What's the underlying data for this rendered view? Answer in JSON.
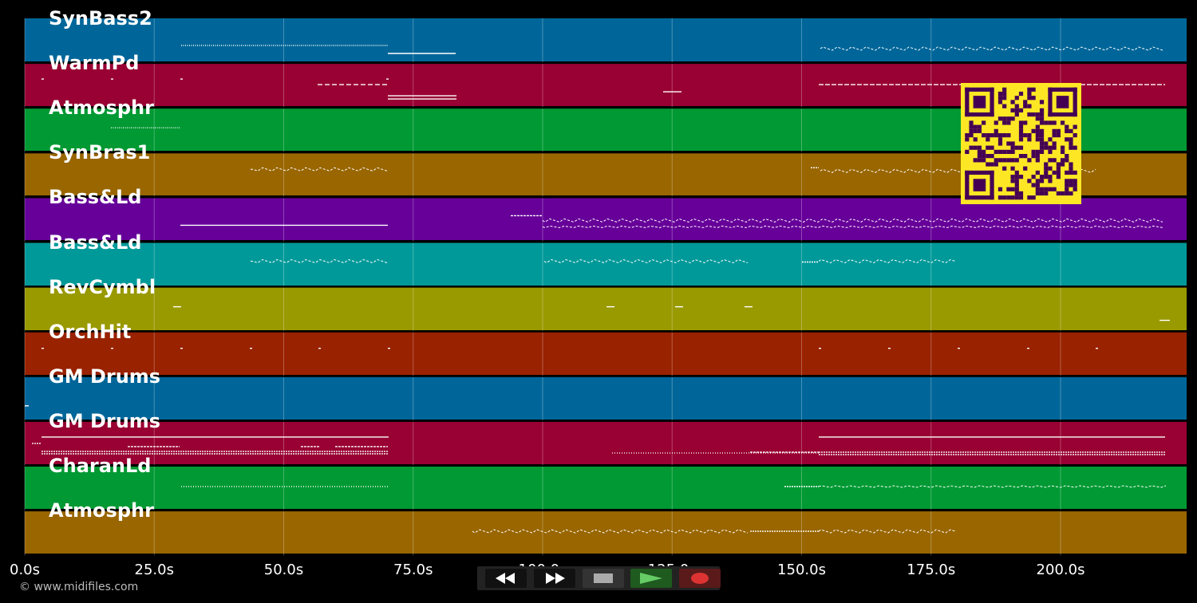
{
  "tracks": [
    {
      "name": "SynBass2",
      "color": "#006699"
    },
    {
      "name": "WarmPd",
      "color": "#990033"
    },
    {
      "name": "Atmosphr",
      "color": "#009933"
    },
    {
      "name": "SynBras1",
      "color": "#996600"
    },
    {
      "name": "Bass&Ld",
      "color": "#660099"
    },
    {
      "name": "Bass&Ld",
      "color": "#009999"
    },
    {
      "name": "RevCymbl",
      "color": "#999900"
    },
    {
      "name": "OrchHit",
      "color": "#992200"
    },
    {
      "name": "GM Drums",
      "color": "#006699"
    },
    {
      "name": "GM Drums",
      "color": "#990033"
    },
    {
      "name": "CharanLd",
      "color": "#009933"
    },
    {
      "name": "Atmosphr",
      "color": "#996600"
    }
  ],
  "timeline": {
    "ticks": [
      "0.0s",
      "25.0s",
      "50.0s",
      "75.0s",
      "100.0s",
      "125.0s",
      "150.0s",
      "175.0s",
      "200.0s"
    ]
  },
  "copyright": "© www.midifiles.com",
  "transport": {
    "buttons": [
      {
        "icon": "rewind-icon"
      },
      {
        "icon": "fast-forward-icon"
      },
      {
        "icon": "stop-icon"
      },
      {
        "icon": "play-icon"
      },
      {
        "icon": "record-icon"
      }
    ]
  },
  "qr": {
    "icon": "qr-code-icon"
  }
}
